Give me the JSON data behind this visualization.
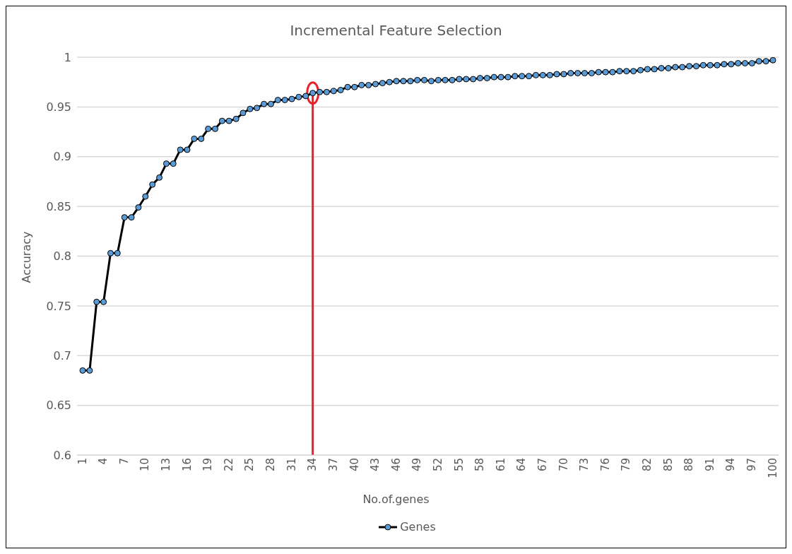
{
  "chart_data": {
    "type": "line",
    "title": "Incremental Feature Selection",
    "xlabel": "No.of.genes",
    "ylabel": "Accuracy",
    "categories": [
      "1",
      null,
      null,
      "4",
      null,
      null,
      "7",
      null,
      null,
      "10",
      null,
      null,
      "13",
      null,
      null,
      "16",
      null,
      null,
      "19",
      null,
      null,
      "22",
      null,
      null,
      "25",
      null,
      null,
      "28",
      null,
      null,
      "31",
      null,
      null,
      "34",
      null,
      null,
      "37",
      null,
      null,
      "40",
      null,
      null,
      "43",
      null,
      null,
      "46",
      null,
      null,
      "49",
      null,
      null,
      "52",
      null,
      null,
      "55",
      null,
      null,
      "58",
      null,
      null,
      "61",
      null,
      null,
      "64",
      null,
      null,
      "67",
      null,
      null,
      "70",
      null,
      null,
      "73",
      null,
      null,
      "76",
      null,
      null,
      "79",
      null,
      null,
      "82",
      null,
      null,
      "85",
      null,
      null,
      "88",
      null,
      null,
      "91",
      null,
      null,
      "94",
      null,
      null,
      "97",
      null,
      null,
      "100"
    ],
    "series": [
      {
        "name": "Genes",
        "color": "#5b9bd5",
        "values": [
          0.685,
          0.685,
          0.754,
          0.754,
          0.803,
          0.803,
          0.839,
          0.839,
          0.849,
          0.86,
          0.872,
          0.879,
          0.893,
          0.893,
          0.907,
          0.907,
          0.918,
          0.918,
          0.928,
          0.928,
          0.936,
          0.936,
          0.938,
          0.944,
          0.948,
          0.949,
          0.953,
          0.953,
          0.957,
          0.957,
          0.958,
          0.96,
          0.961,
          0.964,
          0.965,
          0.965,
          0.966,
          0.967,
          0.97,
          0.97,
          0.972,
          0.972,
          0.973,
          0.974,
          0.975,
          0.976,
          0.976,
          0.976,
          0.977,
          0.977,
          0.976,
          0.977,
          0.977,
          0.977,
          0.978,
          0.978,
          0.978,
          0.979,
          0.979,
          0.98,
          0.98,
          0.98,
          0.981,
          0.981,
          0.981,
          0.982,
          0.982,
          0.982,
          0.983,
          0.983,
          0.984,
          0.984,
          0.984,
          0.984,
          0.985,
          0.985,
          0.985,
          0.986,
          0.986,
          0.986,
          0.987,
          0.988,
          0.988,
          0.989,
          0.989,
          0.99,
          0.99,
          0.991,
          0.991,
          0.992,
          0.992,
          0.992,
          0.993,
          0.993,
          0.994,
          0.994,
          0.994,
          0.996,
          0.996,
          0.997
        ]
      }
    ],
    "ylim": [
      0.6,
      1
    ],
    "yticks": [
      0.6,
      0.65,
      0.7,
      0.75,
      0.8,
      0.85,
      0.9,
      0.95,
      1
    ],
    "grid": "y",
    "legend": "bottom",
    "marker": "circle",
    "line_style": "solid",
    "ref_lines": [
      {
        "axis": "x",
        "value": "34",
        "color": "#e8202a",
        "line_style": "solid"
      }
    ]
  }
}
